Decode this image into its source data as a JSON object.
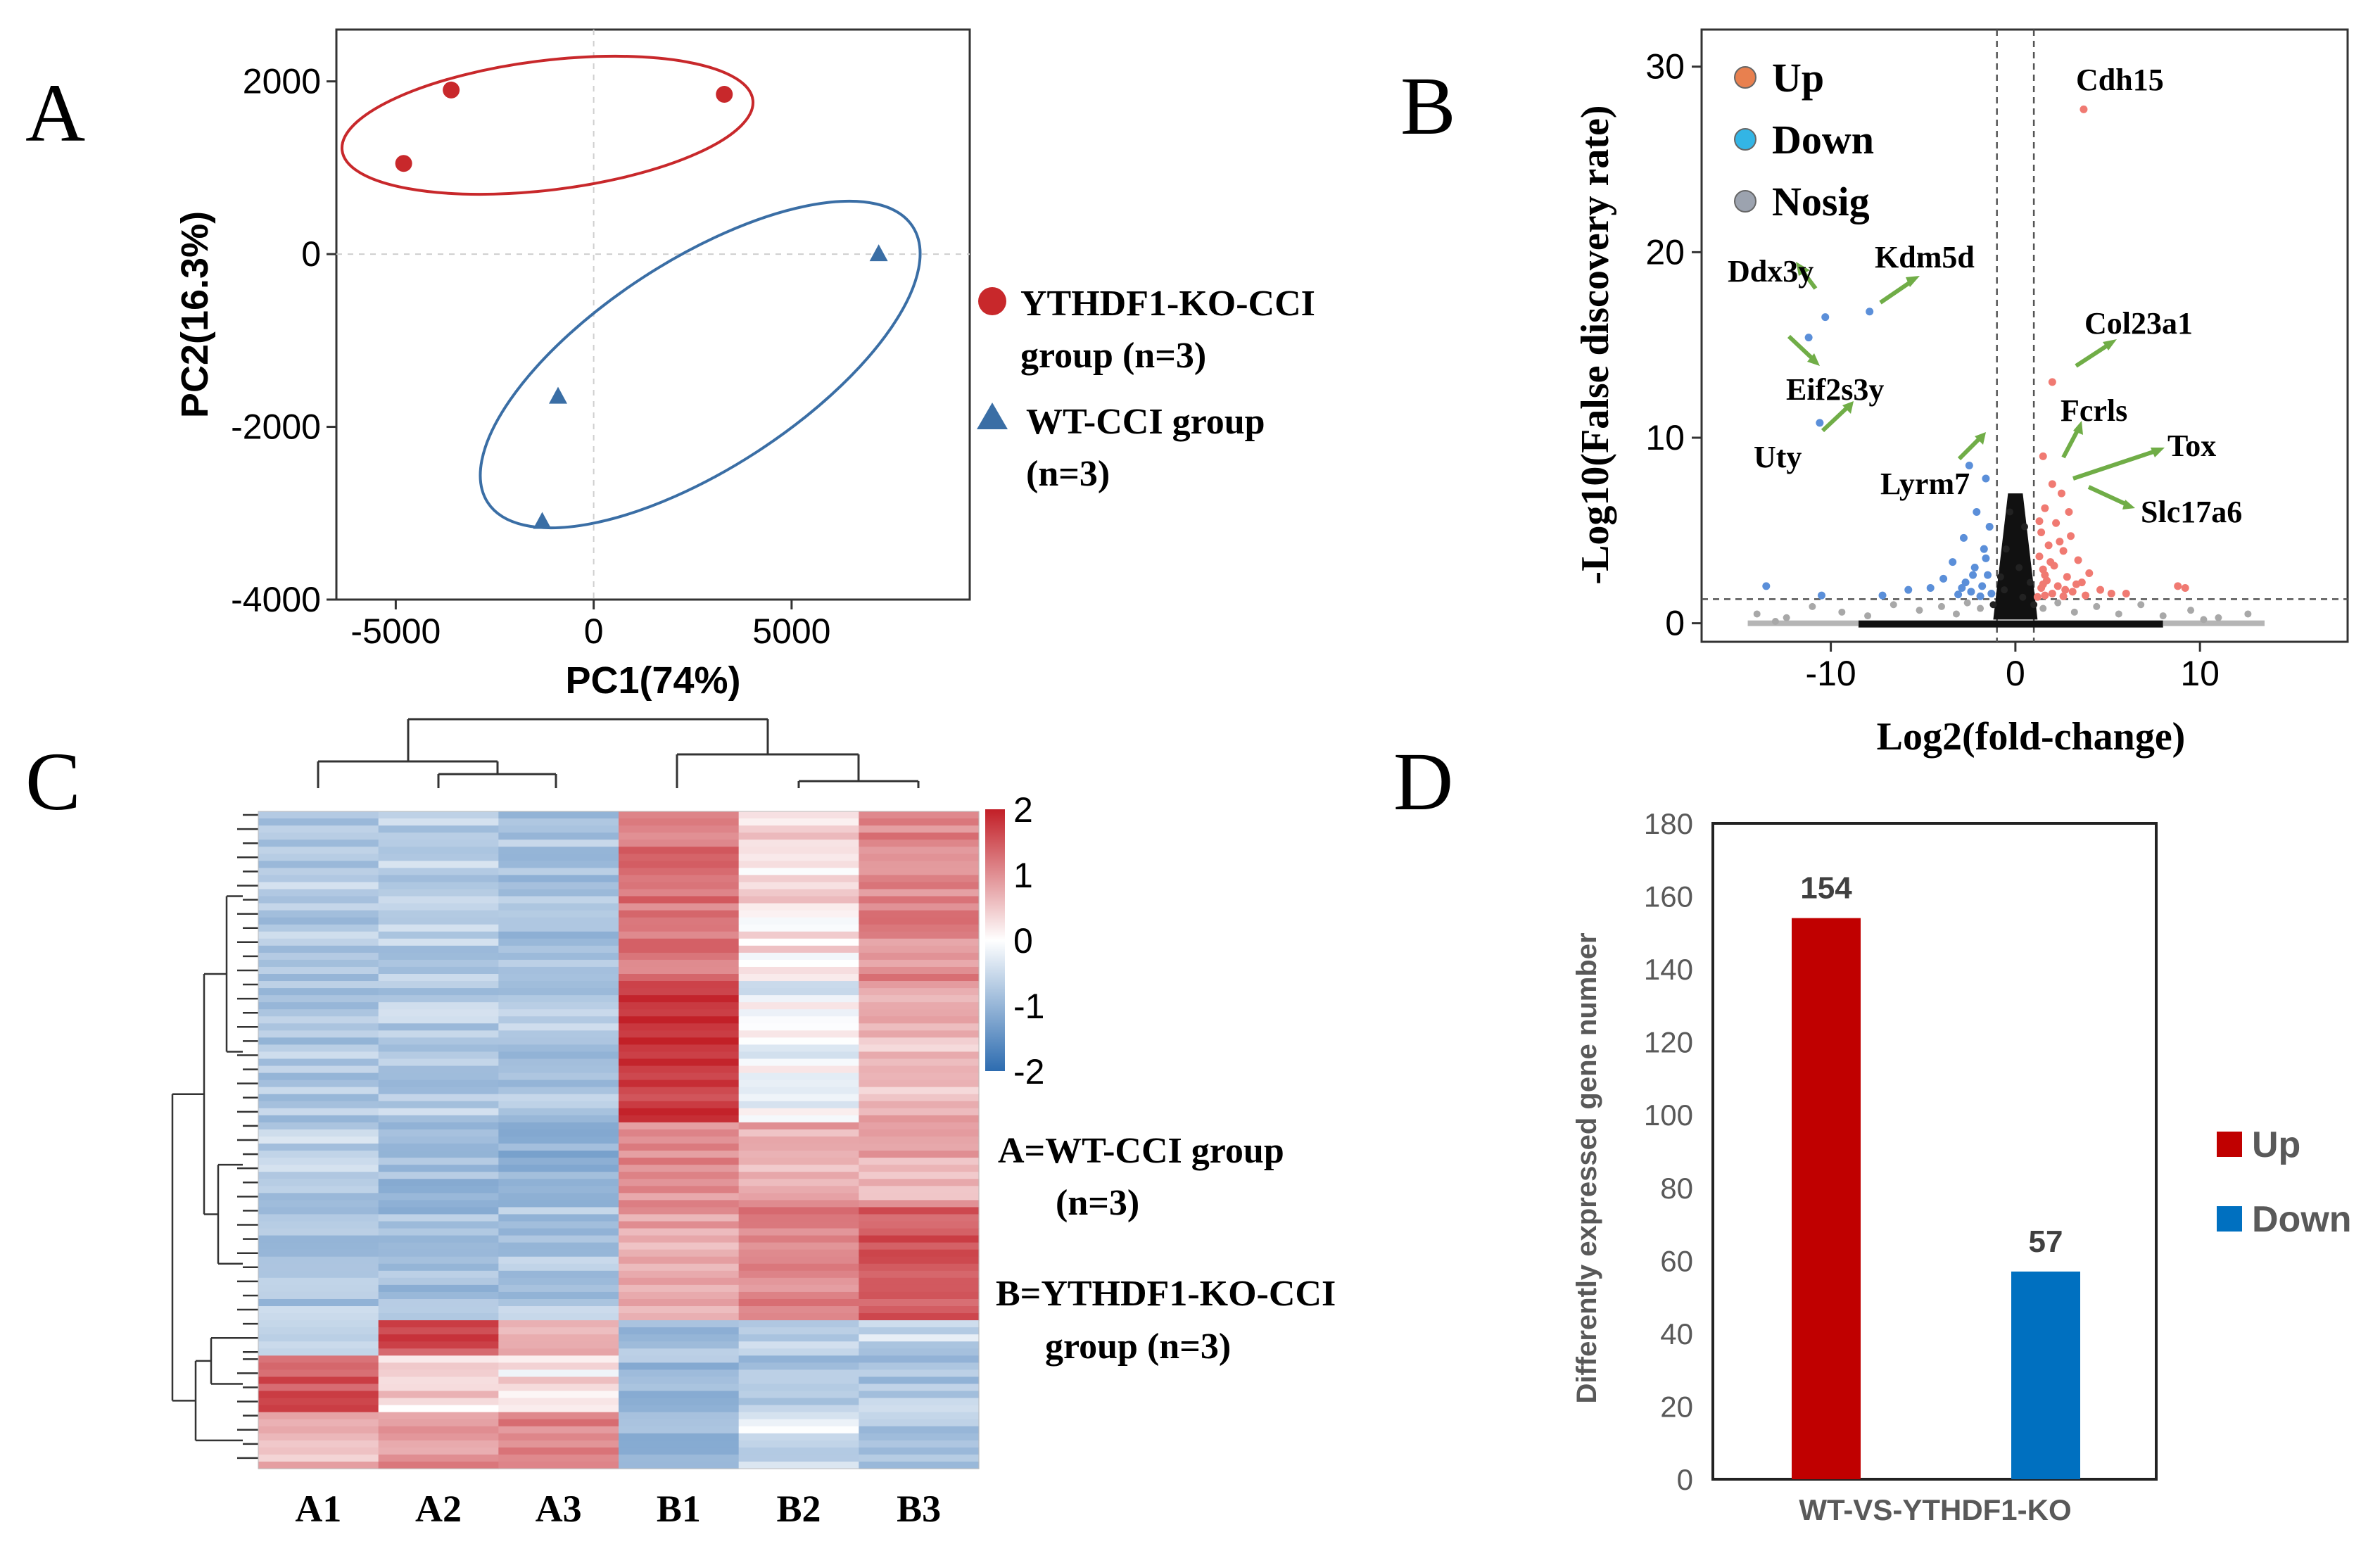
{
  "figure": {
    "panel_letters": [
      "A",
      "B",
      "C",
      "D"
    ]
  },
  "chart_data": [
    {
      "panel": "A",
      "type": "scatter",
      "title": "",
      "xlabel": "PC1(74%)",
      "ylabel": "PC2(16.3%)",
      "xlim": [
        -6500,
        9500
      ],
      "ylim": [
        -4000,
        2600
      ],
      "xticks": [
        -5000,
        0,
        5000
      ],
      "yticks": [
        2000,
        0,
        -2000,
        -4000
      ],
      "series": [
        {
          "name": "YTHDF1-KO-CCI group (n=3)",
          "legend_line1": "YTHDF1-KO-CCI",
          "legend_line2": "group (n=3)",
          "marker": "circle",
          "color": "#c8282b",
          "points": [
            {
              "x": -4800,
              "y": 1050
            },
            {
              "x": -3600,
              "y": 1900
            },
            {
              "x": 3300,
              "y": 1850
            }
          ]
        },
        {
          "name": "WT-CCI group (n=3)",
          "legend_line1": "WT-CCI group",
          "legend_line2": "(n=3)",
          "marker": "triangle",
          "color": "#3a6ea5",
          "points": [
            {
              "x": 7200,
              "y": 0
            },
            {
              "x": -900,
              "y": -1650
            },
            {
              "x": -1300,
              "y": -3100
            }
          ]
        }
      ]
    },
    {
      "panel": "B",
      "type": "scatter",
      "title": "",
      "xlabel": "Log2(fold-change)",
      "ylabel": "-Log10(False discovery rate)",
      "xlim": [
        -17,
        18
      ],
      "ylim": [
        -1,
        32
      ],
      "xticks": [
        -10,
        0,
        10
      ],
      "yticks": [
        0,
        10,
        20,
        30
      ],
      "thresholds": {
        "fc": [
          -1,
          1
        ],
        "fdr": 1.3
      },
      "legend": [
        {
          "label": "Up",
          "color": "#e8804f"
        },
        {
          "label": "Down",
          "color": "#33b5e5"
        },
        {
          "label": "Nosig",
          "color": "#9ca3af"
        }
      ],
      "annotations": [
        {
          "label": "Cdh15",
          "x": 3.7,
          "y": 27.7
        },
        {
          "label": "Ddx3y",
          "x": -10.3,
          "y": 16.5
        },
        {
          "label": "Kdm5d",
          "x": -7.9,
          "y": 16.8
        },
        {
          "label": "Eif2s3y",
          "x": -11.2,
          "y": 15.4
        },
        {
          "label": "Uty",
          "x": -10.6,
          "y": 10.8
        },
        {
          "label": "Col23a1",
          "x": 2.0,
          "y": 13.0
        },
        {
          "label": "Fcrls",
          "x": 1.5,
          "y": 9.0
        },
        {
          "label": "Tox",
          "x": 2.0,
          "y": 7.5
        },
        {
          "label": "Slc17a6",
          "x": 2.5,
          "y": 7.0
        },
        {
          "label": "Lyrm7",
          "x": -2.5,
          "y": 8.5
        }
      ],
      "up_points": [
        [
          3.7,
          27.7
        ],
        [
          2.0,
          13.0
        ],
        [
          1.5,
          9.0
        ],
        [
          2.0,
          7.5
        ],
        [
          2.5,
          7.0
        ],
        [
          1.6,
          6.2
        ],
        [
          2.2,
          5.4
        ],
        [
          1.4,
          4.9
        ],
        [
          3.0,
          4.7
        ],
        [
          1.8,
          4.2
        ],
        [
          2.6,
          3.9
        ],
        [
          1.3,
          3.6
        ],
        [
          3.4,
          3.4
        ],
        [
          2.1,
          3.1
        ],
        [
          1.5,
          2.9
        ],
        [
          4.0,
          2.7
        ],
        [
          2.8,
          2.5
        ],
        [
          1.7,
          2.3
        ],
        [
          3.6,
          2.2
        ],
        [
          2.3,
          2.0
        ],
        [
          1.4,
          1.9
        ],
        [
          4.6,
          1.8
        ],
        [
          3.1,
          1.7
        ],
        [
          2.0,
          1.6
        ],
        [
          5.2,
          1.6
        ],
        [
          1.6,
          1.5
        ],
        [
          8.8,
          2.0
        ],
        [
          9.2,
          1.9
        ],
        [
          6.0,
          1.6
        ],
        [
          2.6,
          1.45
        ],
        [
          1.2,
          1.42
        ],
        [
          3.8,
          1.5
        ],
        [
          1.9,
          3.3
        ],
        [
          2.4,
          4.4
        ],
        [
          1.3,
          5.5
        ],
        [
          2.9,
          6.0
        ],
        [
          1.6,
          2.6
        ],
        [
          3.3,
          2.1
        ],
        [
          2.7,
          1.8
        ],
        [
          1.5,
          2.1
        ]
      ],
      "down_points": [
        [
          -10.3,
          16.5
        ],
        [
          -7.9,
          16.8
        ],
        [
          -11.2,
          15.4
        ],
        [
          -10.6,
          10.8
        ],
        [
          -2.5,
          8.5
        ],
        [
          -1.6,
          7.8
        ],
        [
          -2.1,
          6.0
        ],
        [
          -1.4,
          5.2
        ],
        [
          -2.8,
          4.6
        ],
        [
          -1.7,
          4.0
        ],
        [
          -3.4,
          3.3
        ],
        [
          -2.2,
          3.0
        ],
        [
          -1.5,
          2.6
        ],
        [
          -3.9,
          2.4
        ],
        [
          -2.7,
          2.2
        ],
        [
          -1.8,
          2.0
        ],
        [
          -4.6,
          1.9
        ],
        [
          -5.8,
          1.8
        ],
        [
          -13.5,
          2.0
        ],
        [
          -2.4,
          1.7
        ],
        [
          -1.3,
          1.6
        ],
        [
          -3.1,
          1.55
        ],
        [
          -7.2,
          1.5
        ],
        [
          -10.5,
          1.5
        ],
        [
          -1.9,
          1.45
        ],
        [
          -2.9,
          1.9
        ],
        [
          -1.6,
          3.5
        ],
        [
          -2.3,
          2.6
        ]
      ],
      "nosig_points": [
        [
          -14.0,
          0.5
        ],
        [
          -12.4,
          0.3
        ],
        [
          -11.0,
          0.9
        ],
        [
          -9.4,
          0.6
        ],
        [
          -8.0,
          0.4
        ],
        [
          -6.6,
          1.0
        ],
        [
          -5.2,
          0.7
        ],
        [
          -4.0,
          0.9
        ],
        [
          -3.2,
          0.5
        ],
        [
          -2.6,
          1.1
        ],
        [
          -1.9,
          0.8
        ],
        [
          -1.2,
          1.0
        ],
        [
          -0.8,
          2.5
        ],
        [
          -0.5,
          4.0
        ],
        [
          -0.3,
          6.0
        ],
        [
          0.2,
          3.0
        ],
        [
          0.5,
          5.2
        ],
        [
          0.8,
          2.2
        ],
        [
          1.0,
          1.0
        ],
        [
          1.5,
          0.8
        ],
        [
          2.3,
          1.1
        ],
        [
          3.2,
          0.6
        ],
        [
          4.4,
          0.9
        ],
        [
          5.6,
          0.5
        ],
        [
          6.8,
          1.0
        ],
        [
          8.0,
          0.4
        ],
        [
          9.5,
          0.7
        ],
        [
          11.0,
          0.3
        ],
        [
          12.6,
          0.5
        ],
        [
          -13.0,
          0.1
        ],
        [
          10.2,
          0.2
        ],
        [
          -0.6,
          1.8
        ],
        [
          0.4,
          1.4
        ]
      ]
    },
    {
      "panel": "C",
      "type": "heatmap",
      "title": "",
      "columns": [
        "A1",
        "A2",
        "A3",
        "B1",
        "B2",
        "B3"
      ],
      "colorbar_ticks": [
        2,
        1,
        0,
        -1,
        -2
      ],
      "colorbar_range": [
        -2,
        2
      ],
      "colorbar_colors": [
        "#2d6cb0",
        "#ffffff",
        "#c21f27"
      ],
      "legend_text": [
        {
          "line1": "A=WT-CCI group",
          "line2": "(n=3)"
        },
        {
          "line1": "B=YTHDF1-KO-CCI",
          "line2": "group (n=3)"
        }
      ],
      "blocks": [
        {
          "rows": 24,
          "means": [
            -0.55,
            -0.5,
            -0.65,
            1.1,
            0.2,
            0.9
          ]
        },
        {
          "rows": 20,
          "means": [
            -0.6,
            -0.55,
            -0.6,
            1.7,
            -0.1,
            0.5
          ]
        },
        {
          "rows": 12,
          "means": [
            -0.5,
            -0.8,
            -0.9,
            0.9,
            0.6,
            0.6
          ]
        },
        {
          "rows": 16,
          "means": [
            -0.6,
            -0.7,
            -0.6,
            0.6,
            1.0,
            1.4
          ]
        },
        {
          "rows": 5,
          "means": [
            -0.2,
            1.5,
            0.5,
            -0.7,
            -0.5,
            -0.4
          ]
        },
        {
          "rows": 8,
          "means": [
            1.4,
            0.3,
            0.2,
            -0.8,
            -0.6,
            -0.6
          ]
        },
        {
          "rows": 8,
          "means": [
            0.5,
            0.8,
            1.0,
            -0.8,
            -0.3,
            -0.6
          ]
        }
      ]
    },
    {
      "panel": "D",
      "type": "bar",
      "title": "",
      "xlabel": "WT-VS-YTHDF1-KO",
      "ylabel": "Differently expressed gene number",
      "ylim": [
        0,
        180
      ],
      "yticks": [
        0,
        20,
        40,
        60,
        80,
        100,
        120,
        140,
        160,
        180
      ],
      "categories": [
        "Up",
        "Down"
      ],
      "values": [
        154,
        57
      ],
      "colors": [
        "#c00000",
        "#0070c0"
      ],
      "legend": [
        {
          "label": "Up",
          "color": "#c00000"
        },
        {
          "label": "Down",
          "color": "#0070c0"
        }
      ]
    }
  ]
}
